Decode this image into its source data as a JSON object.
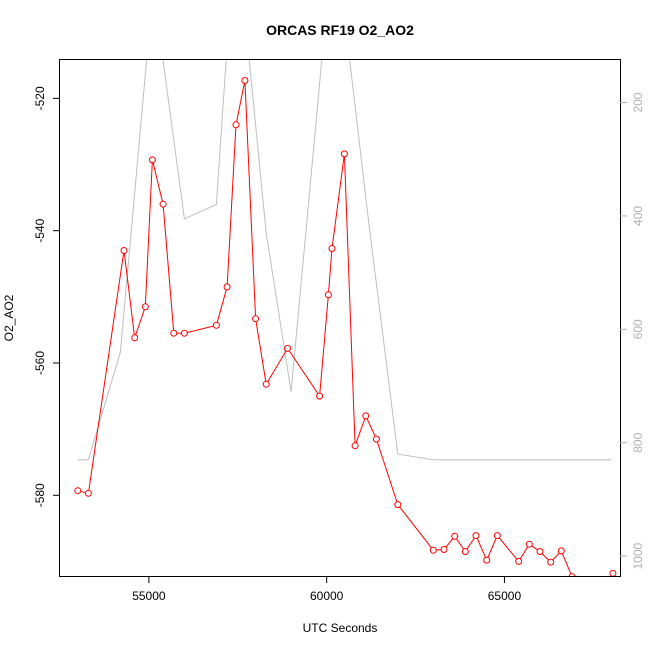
{
  "chart_data": {
    "type": "line",
    "title": "ORCAS RF19 O2_AO2",
    "xlabel": "UTC Seconds",
    "ylabel": "O2_AO2",
    "y2label": "",
    "xlim": [
      52500,
      68250
    ],
    "ylim": [
      -592.2,
      -514.2
    ],
    "y2lim": [
      1035,
      125
    ],
    "y2_inverted": true,
    "x_ticks": [
      55000,
      60000,
      65000
    ],
    "x_tick_labels": [
      "55000",
      "60000",
      "65000"
    ],
    "y_ticks": [
      -580,
      -560,
      -540,
      -520
    ],
    "y_tick_labels": [
      "-580",
      "-560",
      "-540",
      "-520"
    ],
    "y2_ticks": [
      1000,
      800,
      600,
      400,
      200
    ],
    "y2_tick_labels": [
      "1000",
      "800",
      "600",
      "400",
      "200"
    ],
    "grid": false,
    "legend": "none",
    "colors": {
      "primary": "#ff0000",
      "secondary": "#bebebe"
    },
    "series": [
      {
        "axis": "left",
        "style": "line+points",
        "color": "#ff0000",
        "x": [
          53000,
          53300,
          54300,
          54600,
          54900,
          55100,
          55400,
          55700,
          56000,
          56900,
          57200,
          57450,
          57700,
          58000,
          58300,
          58900,
          59800,
          60050,
          60150,
          60500,
          60800,
          61100,
          61400,
          62000,
          63000,
          63300,
          63600,
          63900,
          64200,
          64500,
          64800,
          65400,
          65700,
          66000,
          66300,
          66600,
          66900,
          67200,
          67800,
          68050
        ],
        "y": [
          -579.3,
          -579.7,
          -543.0,
          -556.2,
          -551.5,
          -529.3,
          -536.0,
          -555.5,
          -555.5,
          -554.3,
          -548.5,
          -524.0,
          -517.3,
          -553.3,
          -563.2,
          -557.8,
          -565.0,
          -549.7,
          -542.7,
          -528.4,
          -572.5,
          -568.0,
          -571.5,
          -581.4,
          -588.3,
          -588.2,
          -586.2,
          -588.5,
          -586.1,
          -589.8,
          -586.1,
          -590.0,
          -587.4,
          -588.5,
          -590.1,
          -588.4,
          -592.3,
          -593.0,
          -594.6,
          -591.8
        ]
      },
      {
        "axis": "right",
        "style": "line",
        "color": "#bebebe",
        "x": [
          53000,
          53300,
          54200,
          55000,
          55300,
          56000,
          56900,
          57200,
          57800,
          58300,
          59000,
          59900,
          60600,
          61200,
          62000,
          63000,
          68000
        ],
        "y": [
          830,
          830,
          640,
          80,
          80,
          405,
          380,
          100,
          110,
          430,
          710,
          100,
          100,
          420,
          820,
          830,
          830
        ]
      }
    ]
  }
}
